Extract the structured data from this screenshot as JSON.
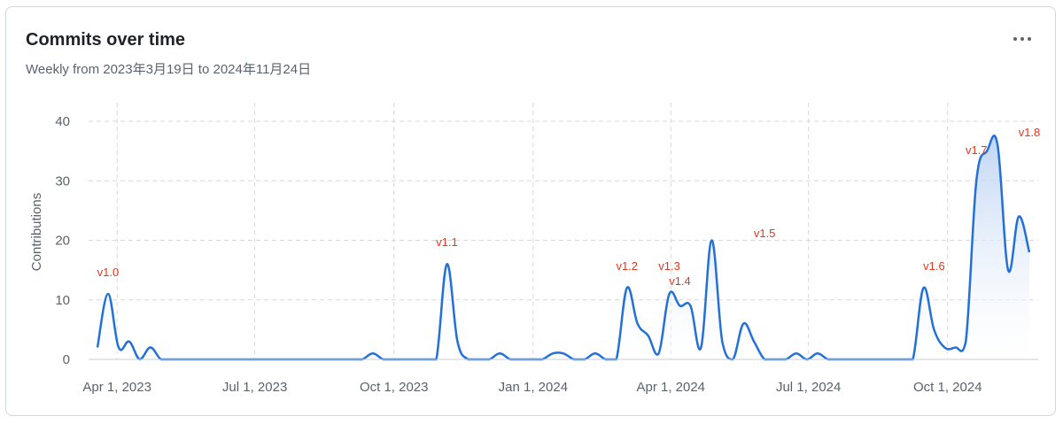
{
  "header": {
    "title": "Commits over time",
    "subtitle": "Weekly from 2023年3月19日 to 2024年11月24日",
    "menu_icon": "kebab-horizontal-icon"
  },
  "colors": {
    "line": "#2370d6",
    "area_top": "#b9d1f2",
    "release": "#e5351f",
    "grid": "#d5d9de"
  },
  "chart_data": {
    "type": "area",
    "title": "Commits over time",
    "subtitle": "Weekly from 2023年3月19日 to 2024年11月24日",
    "xlabel": "",
    "ylabel": "Contributions",
    "ylim": [
      0,
      40
    ],
    "yticks": [
      0,
      10,
      20,
      30,
      40
    ],
    "xlim": [
      "2023-03-19",
      "2024-11-24"
    ],
    "xticks": [
      {
        "date": "2023-04-01",
        "label": "Apr 1, 2023"
      },
      {
        "date": "2023-07-01",
        "label": "Jul 1, 2023"
      },
      {
        "date": "2023-10-01",
        "label": "Oct 1, 2023"
      },
      {
        "date": "2024-01-01",
        "label": "Jan 1, 2024"
      },
      {
        "date": "2024-04-01",
        "label": "Apr 1, 2024"
      },
      {
        "date": "2024-07-01",
        "label": "Jul 1, 2024"
      },
      {
        "date": "2024-10-01",
        "label": "Oct 1, 2024"
      }
    ],
    "grid": true,
    "series": [
      {
        "x": [
          "2023-03-19",
          "2023-03-26",
          "2023-04-02",
          "2023-04-09",
          "2023-04-16",
          "2023-04-23",
          "2023-04-30",
          "2023-05-07",
          "2023-05-14",
          "2023-05-21",
          "2023-05-28",
          "2023-06-04",
          "2023-06-11",
          "2023-06-18",
          "2023-06-25",
          "2023-07-02",
          "2023-07-09",
          "2023-07-16",
          "2023-07-23",
          "2023-07-30",
          "2023-08-06",
          "2023-08-13",
          "2023-08-20",
          "2023-08-27",
          "2023-09-03",
          "2023-09-10",
          "2023-09-17",
          "2023-09-24",
          "2023-10-01",
          "2023-10-08",
          "2023-10-15",
          "2023-10-22",
          "2023-10-29",
          "2023-11-05",
          "2023-11-12",
          "2023-11-19",
          "2023-11-26",
          "2023-12-03",
          "2023-12-10",
          "2023-12-17",
          "2023-12-24",
          "2023-12-31",
          "2024-01-07",
          "2024-01-14",
          "2024-01-21",
          "2024-01-28",
          "2024-02-04",
          "2024-02-11",
          "2024-02-18",
          "2024-02-25",
          "2024-03-03",
          "2024-03-10",
          "2024-03-17",
          "2024-03-24",
          "2024-03-31",
          "2024-04-07",
          "2024-04-14",
          "2024-04-21",
          "2024-04-28",
          "2024-05-05",
          "2024-05-12",
          "2024-05-19",
          "2024-05-26",
          "2024-06-02",
          "2024-06-09",
          "2024-06-16",
          "2024-06-23",
          "2024-06-30",
          "2024-07-07",
          "2024-07-14",
          "2024-07-21",
          "2024-07-28",
          "2024-08-04",
          "2024-08-11",
          "2024-08-18",
          "2024-08-25",
          "2024-09-01",
          "2024-09-08",
          "2024-09-15",
          "2024-09-22",
          "2024-09-29",
          "2024-10-06",
          "2024-10-13",
          "2024-10-20",
          "2024-10-27",
          "2024-11-03",
          "2024-11-10",
          "2024-11-17",
          "2024-11-24"
        ],
        "values": [
          2,
          11,
          2,
          3,
          0,
          2,
          0,
          0,
          0,
          0,
          0,
          0,
          0,
          0,
          0,
          0,
          0,
          0,
          0,
          0,
          0,
          0,
          0,
          0,
          0,
          0,
          1,
          0,
          0,
          0,
          0,
          0,
          0,
          16,
          3,
          0,
          0,
          0,
          1,
          0,
          0,
          0,
          0,
          1,
          1,
          0,
          0,
          1,
          0,
          0,
          12,
          6,
          4,
          1,
          11,
          9,
          9,
          2,
          20,
          3,
          0,
          6,
          3,
          0,
          0,
          0,
          1,
          0,
          1,
          0,
          0,
          0,
          0,
          0,
          0,
          0,
          0,
          0,
          12,
          5,
          2,
          2,
          3,
          30,
          35,
          36,
          15,
          24,
          18
        ]
      }
    ],
    "releases": [
      {
        "label": "v1.0",
        "date": "2023-03-26",
        "y": 14
      },
      {
        "label": "v1.1",
        "date": "2023-11-05",
        "y": 19
      },
      {
        "label": "v1.2",
        "date": "2024-03-03",
        "y": 15
      },
      {
        "label": "v1.3",
        "date": "2024-03-31",
        "y": 15
      },
      {
        "label": "v1.4",
        "date": "2024-04-07",
        "y": 12.5
      },
      {
        "label": "v1.5",
        "date": "2024-06-02",
        "y": 20.5
      },
      {
        "label": "v1.6",
        "date": "2024-09-22",
        "y": 15
      },
      {
        "label": "v1.7",
        "date": "2024-10-20",
        "y": 34.5
      },
      {
        "label": "v1.8",
        "date": "2024-11-24",
        "y": 37.5
      }
    ]
  }
}
